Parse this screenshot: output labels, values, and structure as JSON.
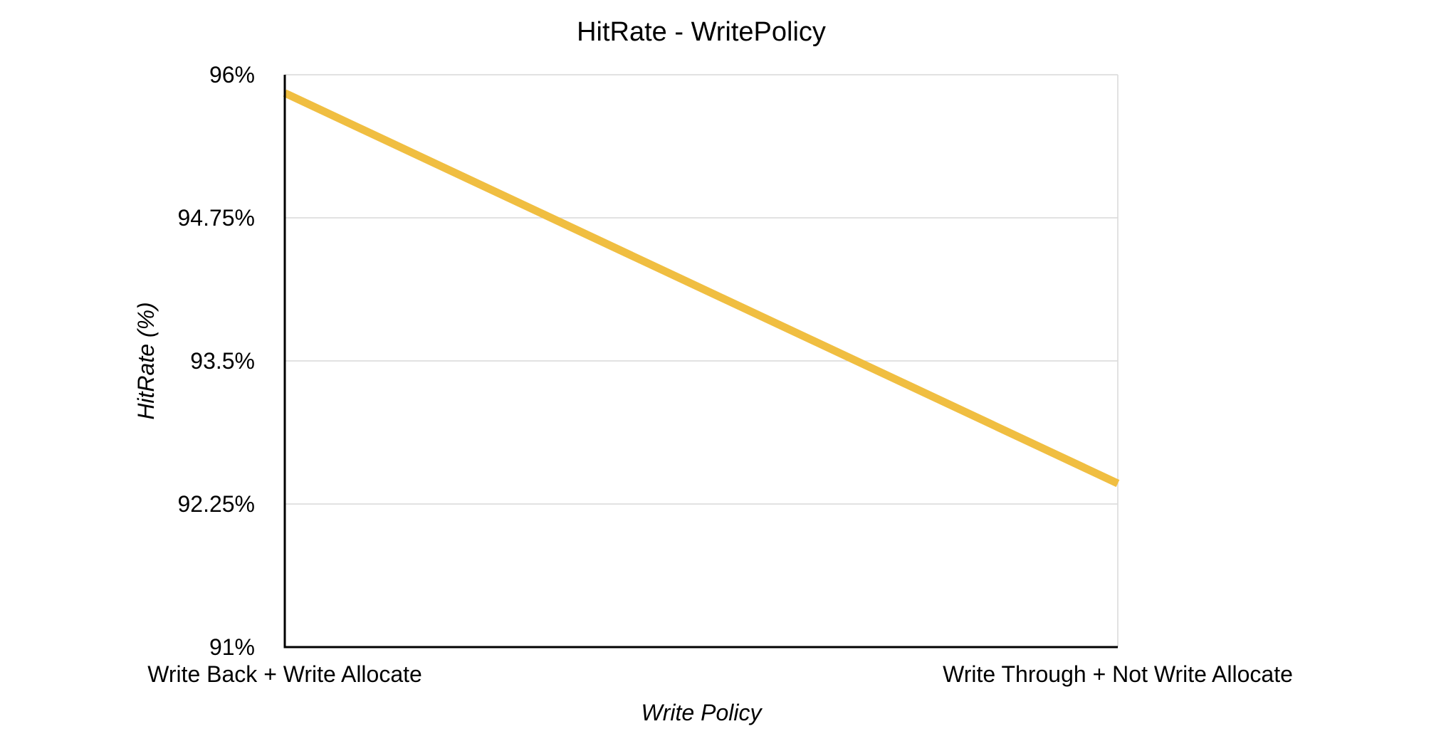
{
  "chart_data": {
    "type": "line",
    "title": "HitRate - WritePolicy",
    "xlabel": "Write Policy",
    "ylabel": "HitRate (%)",
    "categories": [
      "Write Back + Write Allocate",
      "Write Through + Not Write Allocate"
    ],
    "series": [
      {
        "values": [
          95.84,
          92.43
        ],
        "color": "#F0BE41"
      }
    ],
    "ylim": [
      91,
      96
    ],
    "yticks": [
      91,
      92.25,
      93.5,
      94.75,
      96
    ],
    "ytick_labels": [
      "91%",
      "92.25%",
      "93.5%",
      "94.75%",
      "96%"
    ],
    "grid": true,
    "legend": "none",
    "colors": {
      "line": "#F0BE41",
      "grid": "#D9D9D9",
      "axis": "#000000",
      "border": "#D9D9D9"
    }
  }
}
